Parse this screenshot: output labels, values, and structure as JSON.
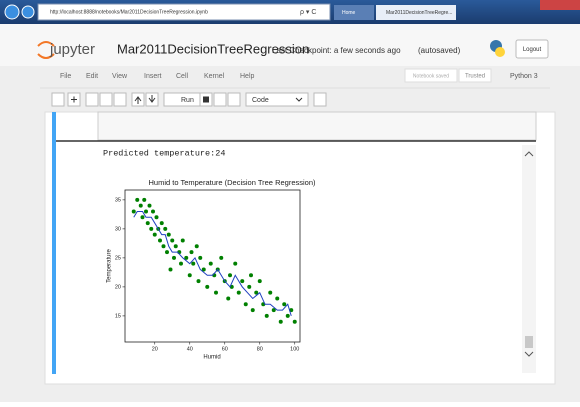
{
  "browser": {
    "url": "http://localhost:8888/notebooks/Mar2011DecisionTreeRegression.ipynb",
    "tabs": [
      "Home",
      "Mar2011DecisionTreeRegre..."
    ]
  },
  "header": {
    "logo": "jupyter",
    "notebook_name": "Mar2011DecisionTreeRegression",
    "checkpoint": "Last Checkpoint: a few seconds ago",
    "autosaved": "(autosaved)",
    "logout": "Logout"
  },
  "menu": [
    "File",
    "Edit",
    "View",
    "Insert",
    "Cell",
    "Kernel",
    "Help"
  ],
  "status": {
    "saved": "Notebook saved",
    "trusted": "Trusted",
    "kernel": "Python 3"
  },
  "toolbar": {
    "run": "Run",
    "cell_type": "Code"
  },
  "output": {
    "text": "Predicted temperature:24"
  },
  "chart_data": {
    "type": "scatter",
    "title": "Humid to Temperature (Decision Tree Regression)",
    "x_label": "Humid",
    "y_label": "Temperature",
    "xlim": [
      3,
      103
    ],
    "ylim": [
      10.5,
      36.7
    ],
    "xticks": [
      20,
      40,
      60,
      80,
      100
    ],
    "yticks": [
      15,
      20,
      25,
      30,
      35
    ],
    "series": [
      {
        "type": "scatter",
        "color": "#008000",
        "x": [
          8,
          10,
          12,
          13,
          14,
          15,
          16,
          17,
          18,
          19,
          20,
          21,
          22,
          23,
          24,
          25,
          26,
          27,
          28,
          29,
          30,
          31,
          32,
          34,
          35,
          36,
          38,
          40,
          41,
          42,
          44,
          45,
          46,
          48,
          50,
          52,
          54,
          55,
          56,
          58,
          60,
          62,
          63,
          64,
          66,
          68,
          70,
          72,
          74,
          75,
          76,
          78,
          80,
          82,
          84,
          86,
          88,
          90,
          92,
          94,
          96,
          98,
          100
        ],
        "values": [
          33,
          35,
          34,
          32,
          35,
          33,
          31,
          34,
          30,
          33,
          29,
          32,
          30,
          28,
          31,
          27,
          30,
          26,
          29,
          23,
          28,
          25,
          27,
          26,
          24,
          28,
          25,
          22,
          26,
          24,
          27,
          21,
          25,
          23,
          20,
          24,
          22,
          19,
          23,
          25,
          21,
          18,
          22,
          20,
          24,
          19,
          21,
          17,
          20,
          22,
          16,
          19,
          21,
          17,
          15,
          19,
          16,
          18,
          14,
          17,
          15,
          16,
          14
        ]
      },
      {
        "type": "line",
        "color": "#2040c0",
        "x": [
          8,
          10,
          13,
          15,
          18,
          20,
          22,
          24,
          26,
          28,
          30,
          33,
          36,
          40,
          43,
          46,
          50,
          53,
          56,
          60,
          63,
          66,
          70,
          73,
          76,
          80,
          83,
          86,
          90,
          93,
          96,
          98
        ],
        "values": [
          32,
          33,
          33,
          32,
          32,
          31,
          30,
          29,
          29,
          27,
          26,
          26,
          25,
          24,
          25,
          23,
          22,
          22,
          23,
          21,
          20,
          22,
          20,
          19,
          18,
          19,
          17,
          17,
          16,
          16,
          17,
          15
        ]
      }
    ]
  }
}
